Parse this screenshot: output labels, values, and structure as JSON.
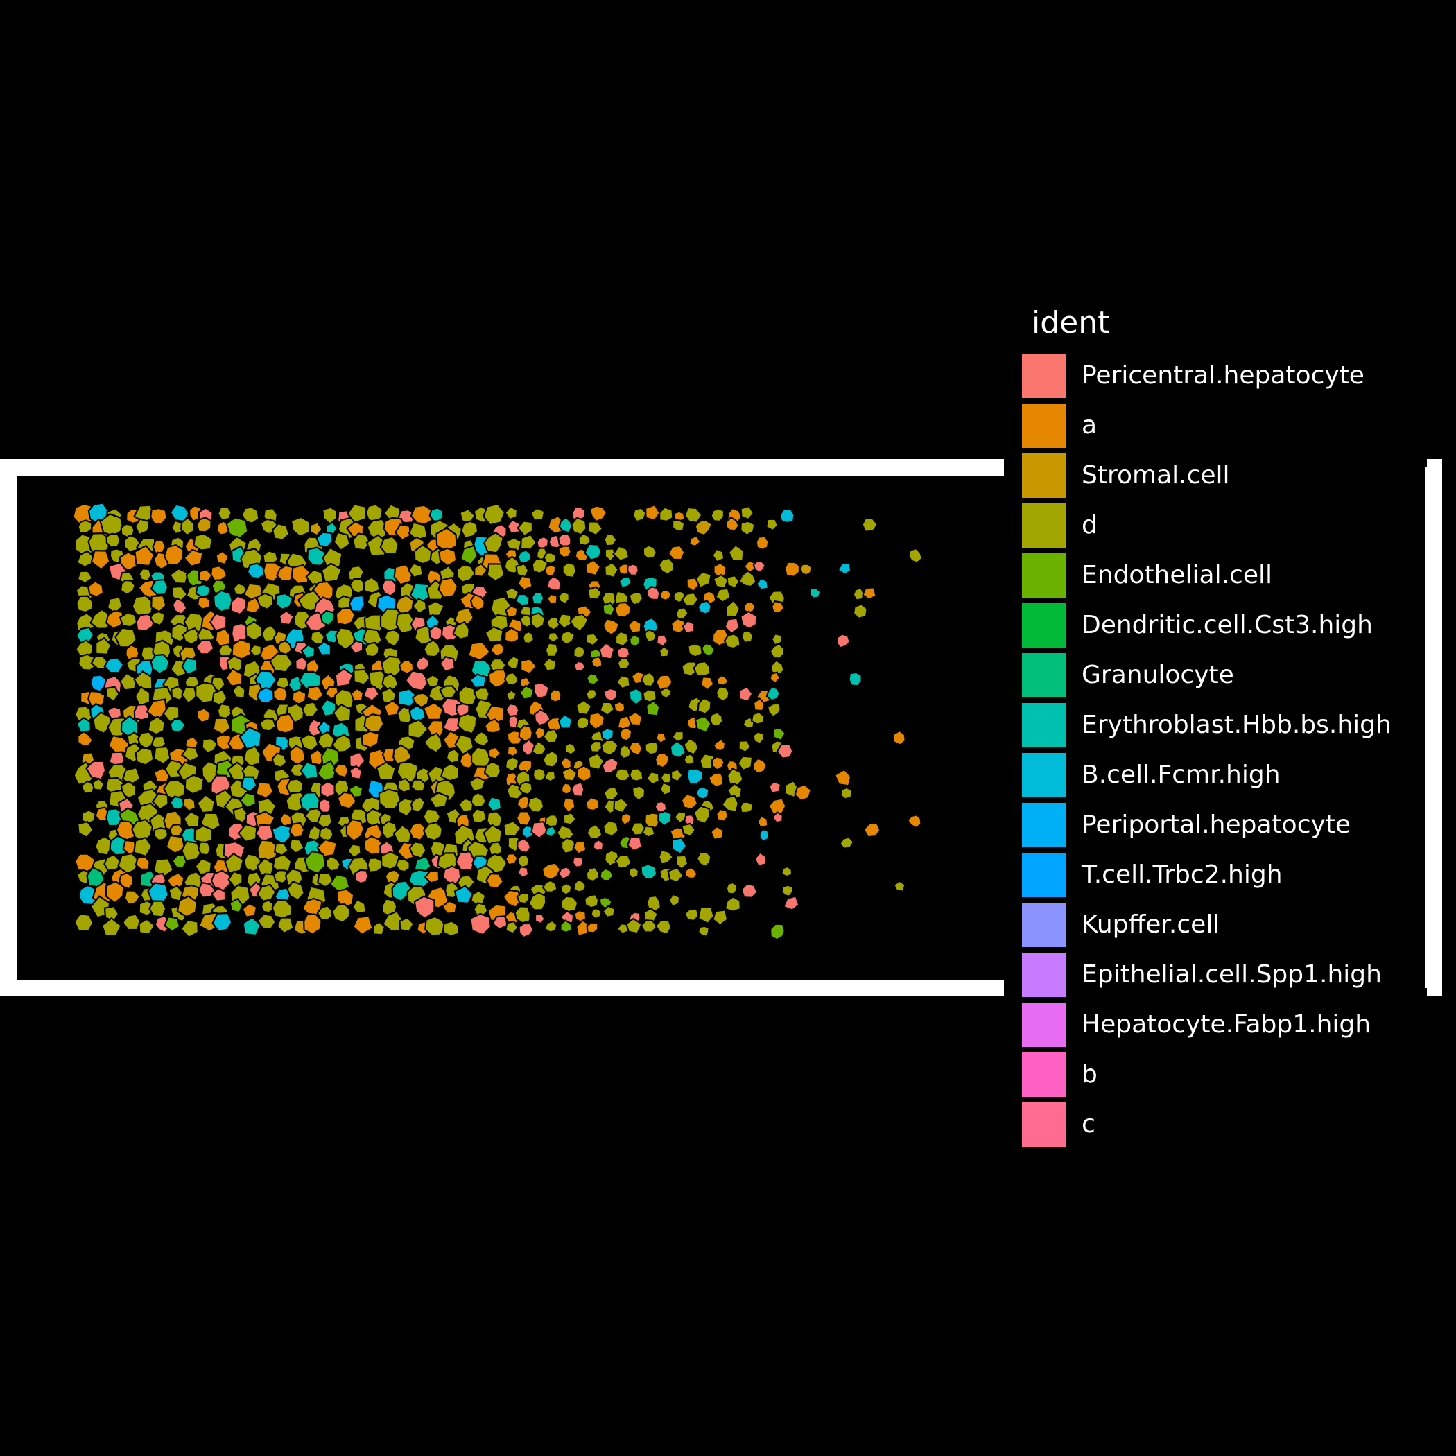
{
  "chart_data": {
    "type": "spatial-polygon",
    "x_axis": {
      "label": "",
      "ticks": []
    },
    "y_axis": {
      "label": "",
      "ticks": []
    },
    "legend": {
      "title": "ident",
      "placement": "right",
      "entries": [
        {
          "label": "Pericentral.hepatocyte",
          "color": "#F8766D"
        },
        {
          "label": "a",
          "color": "#E58700"
        },
        {
          "label": "Stromal.cell",
          "color": "#C99800"
        },
        {
          "label": "d",
          "color": "#A3A500"
        },
        {
          "label": "Endothelial.cell",
          "color": "#6BB100"
        },
        {
          "label": "Dendritic.cell.Cst3.high",
          "color": "#00BA38"
        },
        {
          "label": "Granulocyte",
          "color": "#00BF7D"
        },
        {
          "label": "Erythroblast.Hbb.bs.high",
          "color": "#00C0AF"
        },
        {
          "label": "B.cell.Fcmr.high",
          "color": "#00BCD8"
        },
        {
          "label": "Periportal.hepatocyte",
          "color": "#00B0F6"
        },
        {
          "label": "T.cell.Trbc2.high",
          "color": "#00A5FF"
        },
        {
          "label": "Kupffer.cell",
          "color": "#8B93FF"
        },
        {
          "label": "Epithelial.cell.Spp1.high",
          "color": "#C77CFF"
        },
        {
          "label": "Hepatocyte.Fabp1.high",
          "color": "#E76BF3"
        },
        {
          "label": "b",
          "color": "#FF61C3"
        },
        {
          "label": "c",
          "color": "#FF6C90"
        }
      ]
    },
    "background": "#000000",
    "panel_border_color": "#FFFFFF",
    "cell_outline_color": "#000000",
    "dominant_identities": [
      "d",
      "a",
      "Pericentral.hepatocyte",
      "Erythroblast.Hbb.bs.high",
      "B.cell.Fcmr.high",
      "Endothelial.cell"
    ]
  }
}
